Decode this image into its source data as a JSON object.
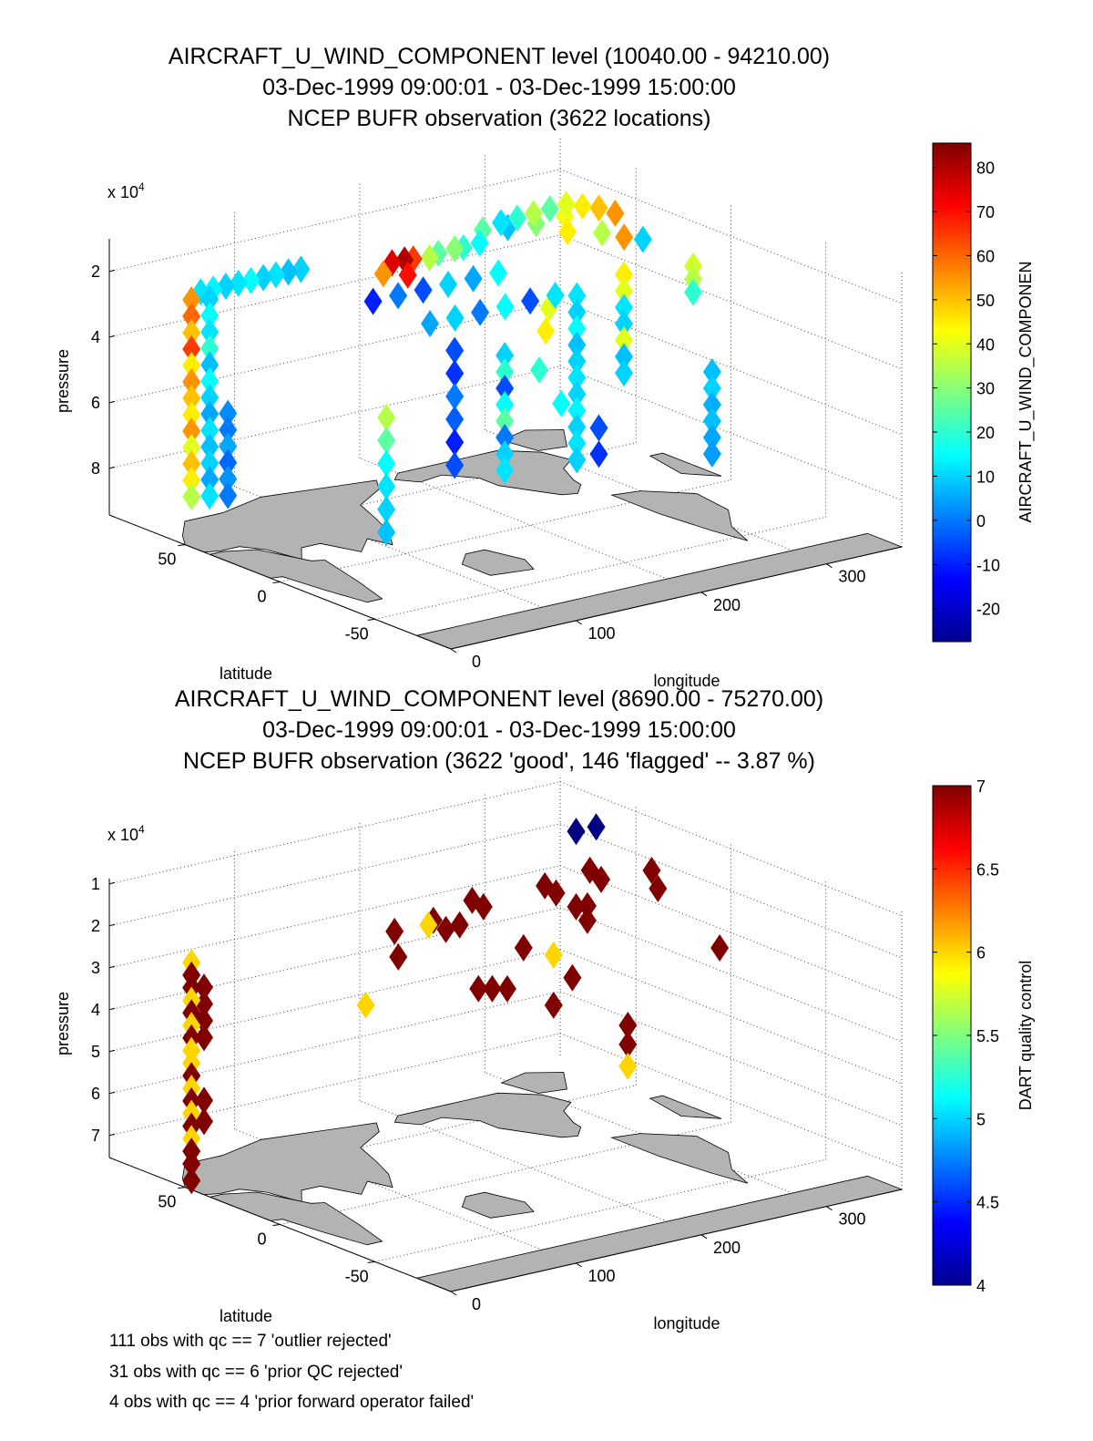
{
  "chart_data": [
    {
      "type": "scatter3d",
      "title_lines": [
        "AIRCRAFT_U_WIND_COMPONENT level (10040.00 - 94210.00)",
        "03-Dec-1999 09:00:01 - 03-Dec-1999 15:00:00",
        "NCEP BUFR observation (3622 locations)"
      ],
      "xlabel": "longitude",
      "ylabel": "latitude",
      "zlabel": "pressure",
      "z_multiplier": "x 10",
      "z_multiplier_exp": "4",
      "xlim": [
        0,
        360
      ],
      "ylim": [
        -90,
        90
      ],
      "zlim": [
        10040,
        94210
      ],
      "z_reversed": true,
      "x_ticks": [
        "0",
        "100",
        "200",
        "300"
      ],
      "y_ticks": [
        "-50",
        "0",
        "50"
      ],
      "z_ticks": [
        "2",
        "4",
        "6",
        "8"
      ],
      "grid": true,
      "colorbar": {
        "label": "AIRCRAFT_U_WIND_COMPONEN",
        "clim": [
          -27.5,
          85.5
        ],
        "ticks": [
          "-20",
          "-10",
          "0",
          "10",
          "20",
          "30",
          "40",
          "50",
          "60",
          "70",
          "80"
        ],
        "colormap": "jet"
      },
      "points_columns": [
        "longitude",
        "latitude",
        "pressure",
        "value"
      ],
      "points": [
        [
          5,
          50,
          20000,
          55
        ],
        [
          5,
          50,
          25000,
          60
        ],
        [
          5,
          50,
          30000,
          50
        ],
        [
          5,
          50,
          35000,
          65
        ],
        [
          5,
          50,
          40000,
          45
        ],
        [
          5,
          50,
          45000,
          55
        ],
        [
          5,
          50,
          50000,
          50
        ],
        [
          5,
          50,
          55000,
          45
        ],
        [
          5,
          50,
          60000,
          55
        ],
        [
          5,
          50,
          65000,
          40
        ],
        [
          5,
          50,
          70000,
          50
        ],
        [
          5,
          50,
          75000,
          45
        ],
        [
          5,
          50,
          80000,
          35
        ],
        [
          15,
          47,
          20000,
          10
        ],
        [
          15,
          47,
          25000,
          15
        ],
        [
          15,
          47,
          30000,
          12
        ],
        [
          15,
          47,
          35000,
          20
        ],
        [
          15,
          47,
          40000,
          8
        ],
        [
          15,
          47,
          45000,
          15
        ],
        [
          15,
          47,
          50000,
          10
        ],
        [
          15,
          47,
          55000,
          5
        ],
        [
          15,
          47,
          60000,
          12
        ],
        [
          15,
          47,
          65000,
          8
        ],
        [
          15,
          47,
          70000,
          10
        ],
        [
          15,
          47,
          75000,
          5
        ],
        [
          15,
          47,
          80000,
          12
        ],
        [
          25,
          44,
          55000,
          2
        ],
        [
          25,
          44,
          60000,
          0
        ],
        [
          25,
          44,
          65000,
          5
        ],
        [
          25,
          44,
          70000,
          -2
        ],
        [
          25,
          44,
          75000,
          3
        ],
        [
          25,
          44,
          80000,
          0
        ],
        [
          20,
          55,
          20000,
          12
        ],
        [
          30,
          55,
          20000,
          14
        ],
        [
          40,
          55,
          20000,
          10
        ],
        [
          50,
          55,
          20000,
          12
        ],
        [
          60,
          55,
          20000,
          15
        ],
        [
          70,
          55,
          20000,
          10
        ],
        [
          80,
          55,
          20000,
          12
        ],
        [
          90,
          55,
          20000,
          8
        ],
        [
          100,
          55,
          20000,
          10
        ],
        [
          100,
          10,
          55000,
          35
        ],
        [
          100,
          10,
          62000,
          25
        ],
        [
          100,
          10,
          69000,
          15
        ],
        [
          100,
          10,
          76000,
          12
        ],
        [
          100,
          10,
          83000,
          10
        ],
        [
          100,
          10,
          90000,
          8
        ],
        [
          150,
          20,
          33000,
          5
        ],
        [
          170,
          20,
          33000,
          10
        ],
        [
          190,
          20,
          33000,
          0
        ],
        [
          210,
          20,
          33000,
          15
        ],
        [
          230,
          20,
          33000,
          -5
        ],
        [
          250,
          20,
          33000,
          12
        ],
        [
          150,
          50,
          33000,
          -10
        ],
        [
          170,
          50,
          33000,
          0
        ],
        [
          190,
          50,
          33000,
          -5
        ],
        [
          210,
          50,
          33000,
          10
        ],
        [
          230,
          50,
          33000,
          5
        ],
        [
          250,
          50,
          33000,
          15
        ],
        [
          200,
          40,
          50000,
          -5
        ],
        [
          200,
          40,
          57000,
          -8
        ],
        [
          200,
          40,
          64000,
          0
        ],
        [
          200,
          40,
          71000,
          -3
        ],
        [
          200,
          40,
          78000,
          -10
        ],
        [
          200,
          40,
          85000,
          -5
        ],
        [
          240,
          40,
          55000,
          10
        ],
        [
          240,
          40,
          60000,
          20
        ],
        [
          240,
          40,
          65000,
          -5
        ],
        [
          240,
          40,
          70000,
          15
        ],
        [
          240,
          40,
          75000,
          25
        ],
        [
          240,
          40,
          80000,
          0
        ],
        [
          240,
          40,
          85000,
          10
        ],
        [
          240,
          40,
          90000,
          12
        ],
        [
          290,
          35,
          40000,
          12
        ],
        [
          290,
          35,
          45000,
          10
        ],
        [
          290,
          35,
          50000,
          15
        ],
        [
          290,
          35,
          55000,
          8
        ],
        [
          290,
          35,
          60000,
          10
        ],
        [
          290,
          35,
          65000,
          12
        ],
        [
          290,
          35,
          70000,
          10
        ],
        [
          290,
          35,
          75000,
          14
        ],
        [
          290,
          35,
          80000,
          10
        ],
        [
          290,
          35,
          85000,
          12
        ],
        [
          290,
          35,
          90000,
          10
        ],
        [
          320,
          30,
          35000,
          45
        ],
        [
          320,
          30,
          40000,
          40
        ],
        [
          320,
          30,
          45000,
          12
        ],
        [
          320,
          30,
          50000,
          10
        ],
        [
          320,
          30,
          55000,
          40
        ],
        [
          320,
          30,
          60000,
          8
        ],
        [
          320,
          30,
          65000,
          10
        ],
        [
          345,
          0,
          60000,
          8
        ],
        [
          345,
          0,
          65000,
          10
        ],
        [
          345,
          0,
          70000,
          6
        ],
        [
          345,
          0,
          75000,
          8
        ],
        [
          345,
          0,
          80000,
          5
        ],
        [
          345,
          0,
          85000,
          4
        ],
        [
          345,
          10,
          30000,
          38
        ],
        [
          345,
          10,
          34000,
          35
        ],
        [
          345,
          10,
          38000,
          20
        ],
        [
          300,
          30,
          80000,
          -5
        ],
        [
          300,
          30,
          88000,
          -8
        ],
        [
          260,
          30,
          40000,
          40
        ],
        [
          250,
          25,
          45000,
          45
        ],
        [
          260,
          35,
          60000,
          20
        ],
        [
          270,
          30,
          70000,
          15
        ],
        [
          140,
          38,
          21000,
          55
        ],
        [
          150,
          40,
          19000,
          75
        ],
        [
          155,
          35,
          22000,
          70
        ],
        [
          160,
          40,
          19000,
          80
        ],
        [
          170,
          42,
          20000,
          65
        ],
        [
          180,
          40,
          20000,
          35
        ],
        [
          190,
          42,
          20000,
          25
        ],
        [
          200,
          40,
          19000,
          30
        ],
        [
          210,
          42,
          20000,
          20
        ],
        [
          220,
          40,
          19000,
          15
        ],
        [
          230,
          45,
          17000,
          25
        ],
        [
          240,
          42,
          15000,
          12
        ],
        [
          250,
          45,
          18000,
          8
        ],
        [
          250,
          40,
          14000,
          20
        ],
        [
          260,
          38,
          13000,
          35
        ],
        [
          265,
          40,
          17000,
          30
        ],
        [
          270,
          36,
          12000,
          25
        ],
        [
          275,
          30,
          18000,
          45
        ],
        [
          280,
          34,
          11000,
          40
        ],
        [
          285,
          38,
          16000,
          42
        ],
        [
          290,
          32,
          12000,
          45
        ],
        [
          295,
          25,
          19000,
          35
        ],
        [
          300,
          30,
          13000,
          50
        ],
        [
          305,
          20,
          20000,
          55
        ],
        [
          310,
          28,
          15000,
          55
        ],
        [
          320,
          20,
          22000,
          10
        ]
      ]
    },
    {
      "type": "scatter3d",
      "title_lines": [
        "AIRCRAFT_U_WIND_COMPONENT level (8690.00 - 75270.00)",
        "03-Dec-1999 09:00:01 - 03-Dec-1999 15:00:00",
        "NCEP BUFR observation (3622 'good', 146 'flagged' -- 3.87 %)"
      ],
      "xlabel": "longitude",
      "ylabel": "latitude",
      "zlabel": "pressure",
      "z_multiplier": "x 10",
      "z_multiplier_exp": "4",
      "xlim": [
        0,
        360
      ],
      "ylim": [
        -90,
        90
      ],
      "zlim": [
        8690,
        75270
      ],
      "z_reversed": true,
      "x_ticks": [
        "0",
        "100",
        "200",
        "300"
      ],
      "y_ticks": [
        "-50",
        "0",
        "50"
      ],
      "z_ticks": [
        "1",
        "2",
        "3",
        "4",
        "5",
        "6",
        "7"
      ],
      "grid": true,
      "colorbar": {
        "label": "DART quality control",
        "clim": [
          4,
          7
        ],
        "ticks": [
          "4",
          "4.5",
          "5",
          "5.5",
          "6",
          "6.5",
          "7"
        ],
        "colormap": "jet"
      },
      "points_columns": [
        "longitude",
        "latitude",
        "pressure",
        "value"
      ],
      "points": [
        [
          5,
          50,
          22000,
          6
        ],
        [
          5,
          50,
          25000,
          7
        ],
        [
          5,
          50,
          28000,
          7
        ],
        [
          5,
          50,
          31000,
          6
        ],
        [
          5,
          50,
          34000,
          7
        ],
        [
          5,
          50,
          37000,
          6
        ],
        [
          5,
          50,
          40000,
          7
        ],
        [
          5,
          50,
          43000,
          6
        ],
        [
          5,
          50,
          46000,
          6
        ],
        [
          5,
          50,
          49000,
          7
        ],
        [
          5,
          50,
          52000,
          6
        ],
        [
          5,
          50,
          55000,
          7
        ],
        [
          5,
          50,
          58000,
          6
        ],
        [
          5,
          50,
          61000,
          7
        ],
        [
          5,
          50,
          64000,
          6
        ],
        [
          5,
          50,
          67000,
          7
        ],
        [
          5,
          50,
          70000,
          7
        ],
        [
          5,
          50,
          74000,
          7
        ],
        [
          12,
          48,
          28000,
          7
        ],
        [
          12,
          48,
          32000,
          7
        ],
        [
          12,
          48,
          36000,
          7
        ],
        [
          12,
          48,
          40000,
          7
        ],
        [
          12,
          48,
          55000,
          7
        ],
        [
          12,
          48,
          60000,
          7
        ],
        [
          129,
          40,
          38770,
          6
        ],
        [
          152,
          40,
          22730,
          7
        ],
        [
          155,
          40,
          29010,
          7
        ],
        [
          179,
          40,
          23030,
          6
        ],
        [
          183,
          40,
          22200,
          7
        ],
        [
          193,
          40,
          25050,
          7
        ],
        [
          204,
          40,
          24700,
          7
        ],
        [
          214,
          40,
          19530,
          7
        ],
        [
          223,
          40,
          21660,
          7
        ],
        [
          219,
          40,
          40940,
          7
        ],
        [
          230,
          40,
          41680,
          7
        ],
        [
          242,
          40,
          42510,
          7
        ],
        [
          255,
          40,
          33600,
          7
        ],
        [
          272,
          40,
          19970,
          7
        ],
        [
          281,
          40,
          22310,
          7
        ],
        [
          279,
          40,
          36970,
          6
        ],
        [
          279,
          40,
          48920,
          7
        ],
        [
          294,
          40,
          43400,
          7
        ],
        [
          297,
          40,
          26660,
          7
        ],
        [
          306,
          40,
          30530,
          7
        ],
        [
          306,
          40,
          27050,
          7
        ],
        [
          308,
          40,
          18700,
          7
        ],
        [
          317,
          40,
          21490,
          7
        ],
        [
          297,
          40,
          8690,
          4
        ],
        [
          313,
          40,
          8700,
          4
        ],
        [
          327,
          20,
          16470,
          7
        ],
        [
          332,
          20,
          21140,
          7
        ],
        [
          351,
          0,
          33030,
          7
        ],
        [
          308,
          20,
          52140,
          7
        ],
        [
          308,
          20,
          56700,
          7
        ],
        [
          308,
          20,
          61920,
          6
        ]
      ]
    }
  ],
  "notes": [
    "111 obs with qc == 7 'outlier rejected'",
    "31 obs with qc == 6 'prior QC rejected'",
    "4 obs with qc == 4 'prior forward operator failed'"
  ],
  "colors": {
    "land": "#b3b3b3",
    "coast": "#000000",
    "grid": "#555555"
  }
}
